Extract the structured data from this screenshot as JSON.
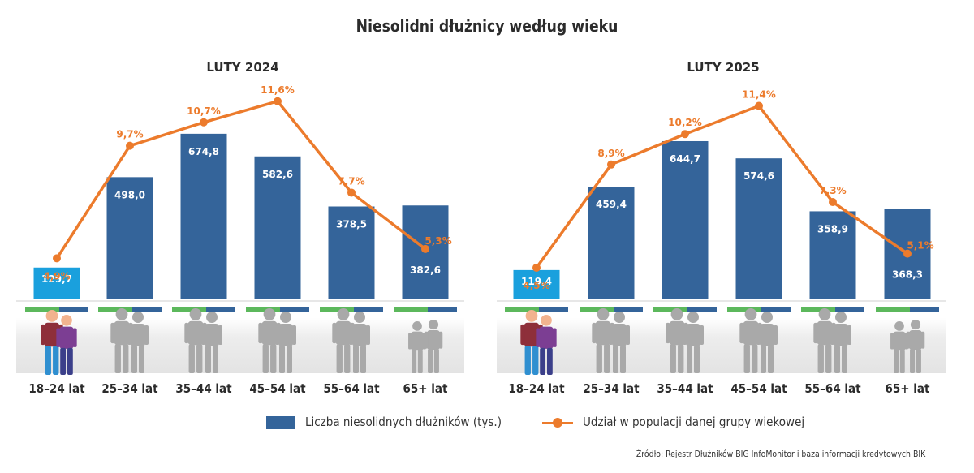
{
  "title": "Niesolidni dłużnicy według wieku",
  "chart_data": [
    {
      "type": "bar",
      "title": "LUTY 2024",
      "categories": [
        "18–24 lat",
        "25–34 lat",
        "35–44 lat",
        "45–54 lat",
        "55–64 lat",
        "65+ lat"
      ],
      "series": [
        {
          "name": "Liczba niesolidnych dłużników (tys.)",
          "type": "bar",
          "values": [
            129.7,
            498.0,
            674.8,
            582.6,
            378.5,
            382.6
          ],
          "labels": [
            "129,7",
            "498,0",
            "674,8",
            "582,6",
            "378,5",
            "382,6"
          ]
        },
        {
          "name": "Udział w populacji danej grupy wiekowej",
          "type": "line",
          "values": [
            4.9,
            9.7,
            10.7,
            11.6,
            7.7,
            5.3
          ],
          "labels": [
            "4,9%",
            "9,7%",
            "10,7%",
            "11,6%",
            "7,7%",
            "5,3%"
          ]
        }
      ],
      "ylim": [
        0,
        750
      ],
      "y2lim": [
        0,
        13
      ]
    },
    {
      "type": "bar",
      "title": "LUTY 2025",
      "categories": [
        "18–24 lat",
        "25–34 lat",
        "35–44 lat",
        "45–54 lat",
        "55–64 lat",
        "65+ lat"
      ],
      "series": [
        {
          "name": "Liczba niesolidnych dłużników (tys.)",
          "type": "bar",
          "values": [
            119.4,
            459.4,
            644.7,
            574.6,
            358.9,
            368.3
          ],
          "labels": [
            "119,4",
            "459,4",
            "644,7",
            "574,6",
            "358,9",
            "368,3"
          ]
        },
        {
          "name": "Udział w populacji danej grupy wiekowej",
          "type": "line",
          "values": [
            4.5,
            8.9,
            10.2,
            11.4,
            7.3,
            5.1
          ],
          "labels": [
            "4,5%",
            "8,9%",
            "10,2%",
            "11,4%",
            "7,3%",
            "5,1%"
          ]
        }
      ],
      "ylim": [
        0,
        750
      ],
      "y2lim": [
        0,
        13
      ]
    }
  ],
  "legend": {
    "bar": "Liczba niesolidnych dłużników (tys.)",
    "line": "Udział w populacji danej grupy wiekowej"
  },
  "source": "Źródło: Rejestr Dłużników BIG InfoMonitor i baza informacji kredytowych BIK",
  "colors": {
    "bar": "#34649a",
    "bar_highlight": "#1aa0dd",
    "line": "#ec7b2c",
    "accent_green": "#5cb85c",
    "figure_gray": "#a9a9a9",
    "floor_gray": "#e6e6e6"
  }
}
